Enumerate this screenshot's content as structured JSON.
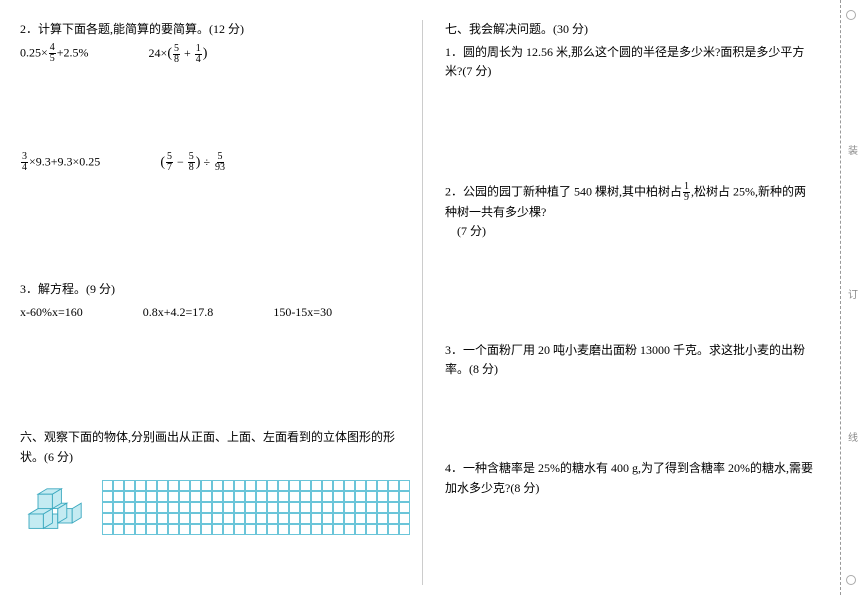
{
  "left": {
    "q2": {
      "title": "2．计算下面各题,能简算的要简算。(12 分)",
      "items": [
        [
          "0.25×",
          {
            "n": "4",
            "d": "5"
          },
          "+2.5%"
        ],
        [
          "24×",
          "(",
          {
            "n": "5",
            "d": "8"
          },
          " + ",
          {
            "n": "1",
            "d": "4"
          },
          ")"
        ],
        [
          {
            "n": "3",
            "d": "4"
          },
          "×9.3+9.3×0.25"
        ],
        [
          "(",
          {
            "n": "5",
            "d": "7"
          },
          " − ",
          {
            "n": "5",
            "d": "8"
          },
          ")",
          " ÷ ",
          {
            "n": "5",
            "d": "93"
          }
        ]
      ]
    },
    "q3": {
      "title": "3．解方程。(9 分)",
      "eqs": [
        "x-60%x=160",
        "0.8x+4.2=17.8",
        "150-15x=30"
      ]
    },
    "q6": {
      "title": "六、观察下面的物体,分别画出从正面、上面、左面看到的立体图形的形状。(6 分)"
    }
  },
  "right": {
    "heading": "七、我会解决问题。(30 分)",
    "p1": "1．圆的周长为 12.56 米,那么这个圆的半径是多少米?面积是多少平方米?(7 分)",
    "p2a": "2．公园的园丁新种植了 540 棵树,其中柏树占",
    "p2frac": {
      "n": "1",
      "d": "9"
    },
    "p2b": ",松树占 25%,新种的两种树一共有多少棵?",
    "p2c": "(7 分)",
    "p3": "3．一个面粉厂用 20 吨小麦磨出面粉 13000 千克。求这批小麦的出粉率。(8 分)",
    "p4": "4．一种含糖率是 25%的糖水有 400 g,为了得到含糖率 20%的糖水,需要加水多少克?(8 分)"
  },
  "binding": [
    "装",
    "订",
    "线"
  ]
}
